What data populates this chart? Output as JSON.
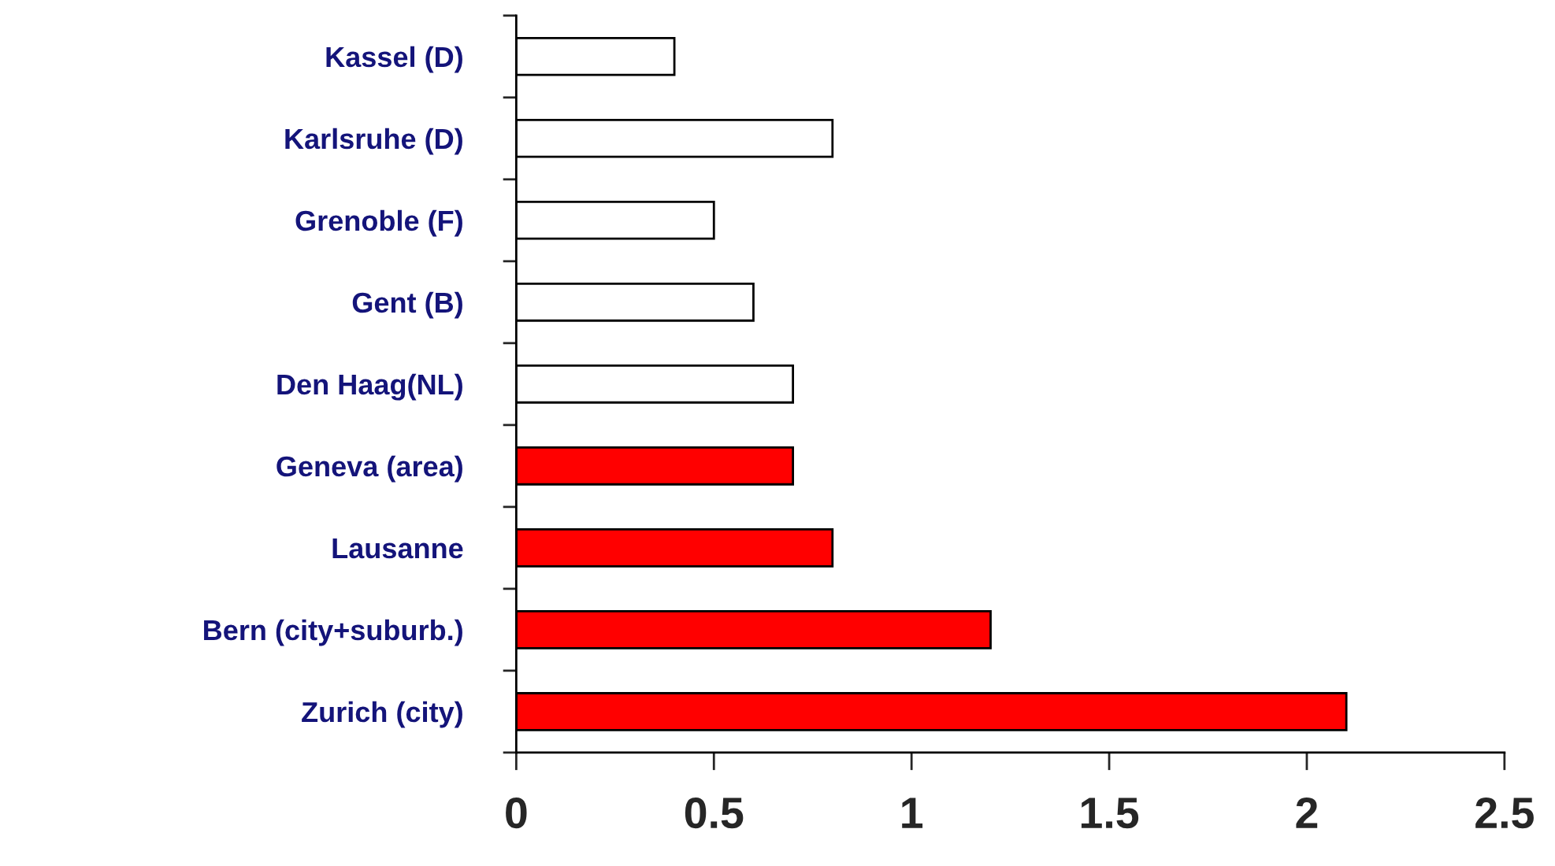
{
  "chart_data": {
    "type": "bar",
    "orientation": "horizontal",
    "categories": [
      "Kassel (D)",
      "Karlsruhe (D)",
      "Grenoble (F)",
      "Gent (B)",
      "Den Haag(NL)",
      "Geneva (area)",
      "Lausanne",
      "Bern (city+suburb.)",
      "Zurich (city)"
    ],
    "values": [
      0.4,
      0.8,
      0.5,
      0.6,
      0.7,
      0.7,
      0.8,
      1.2,
      2.1
    ],
    "colors": [
      "#ffffff",
      "#ffffff",
      "#ffffff",
      "#ffffff",
      "#ffffff",
      "#ff0000",
      "#ff0000",
      "#ff0000",
      "#ff0000"
    ],
    "xlim": [
      0,
      2.5
    ],
    "xticks": [
      0,
      0.5,
      1,
      1.5,
      2,
      2.5
    ],
    "grid": false
  }
}
